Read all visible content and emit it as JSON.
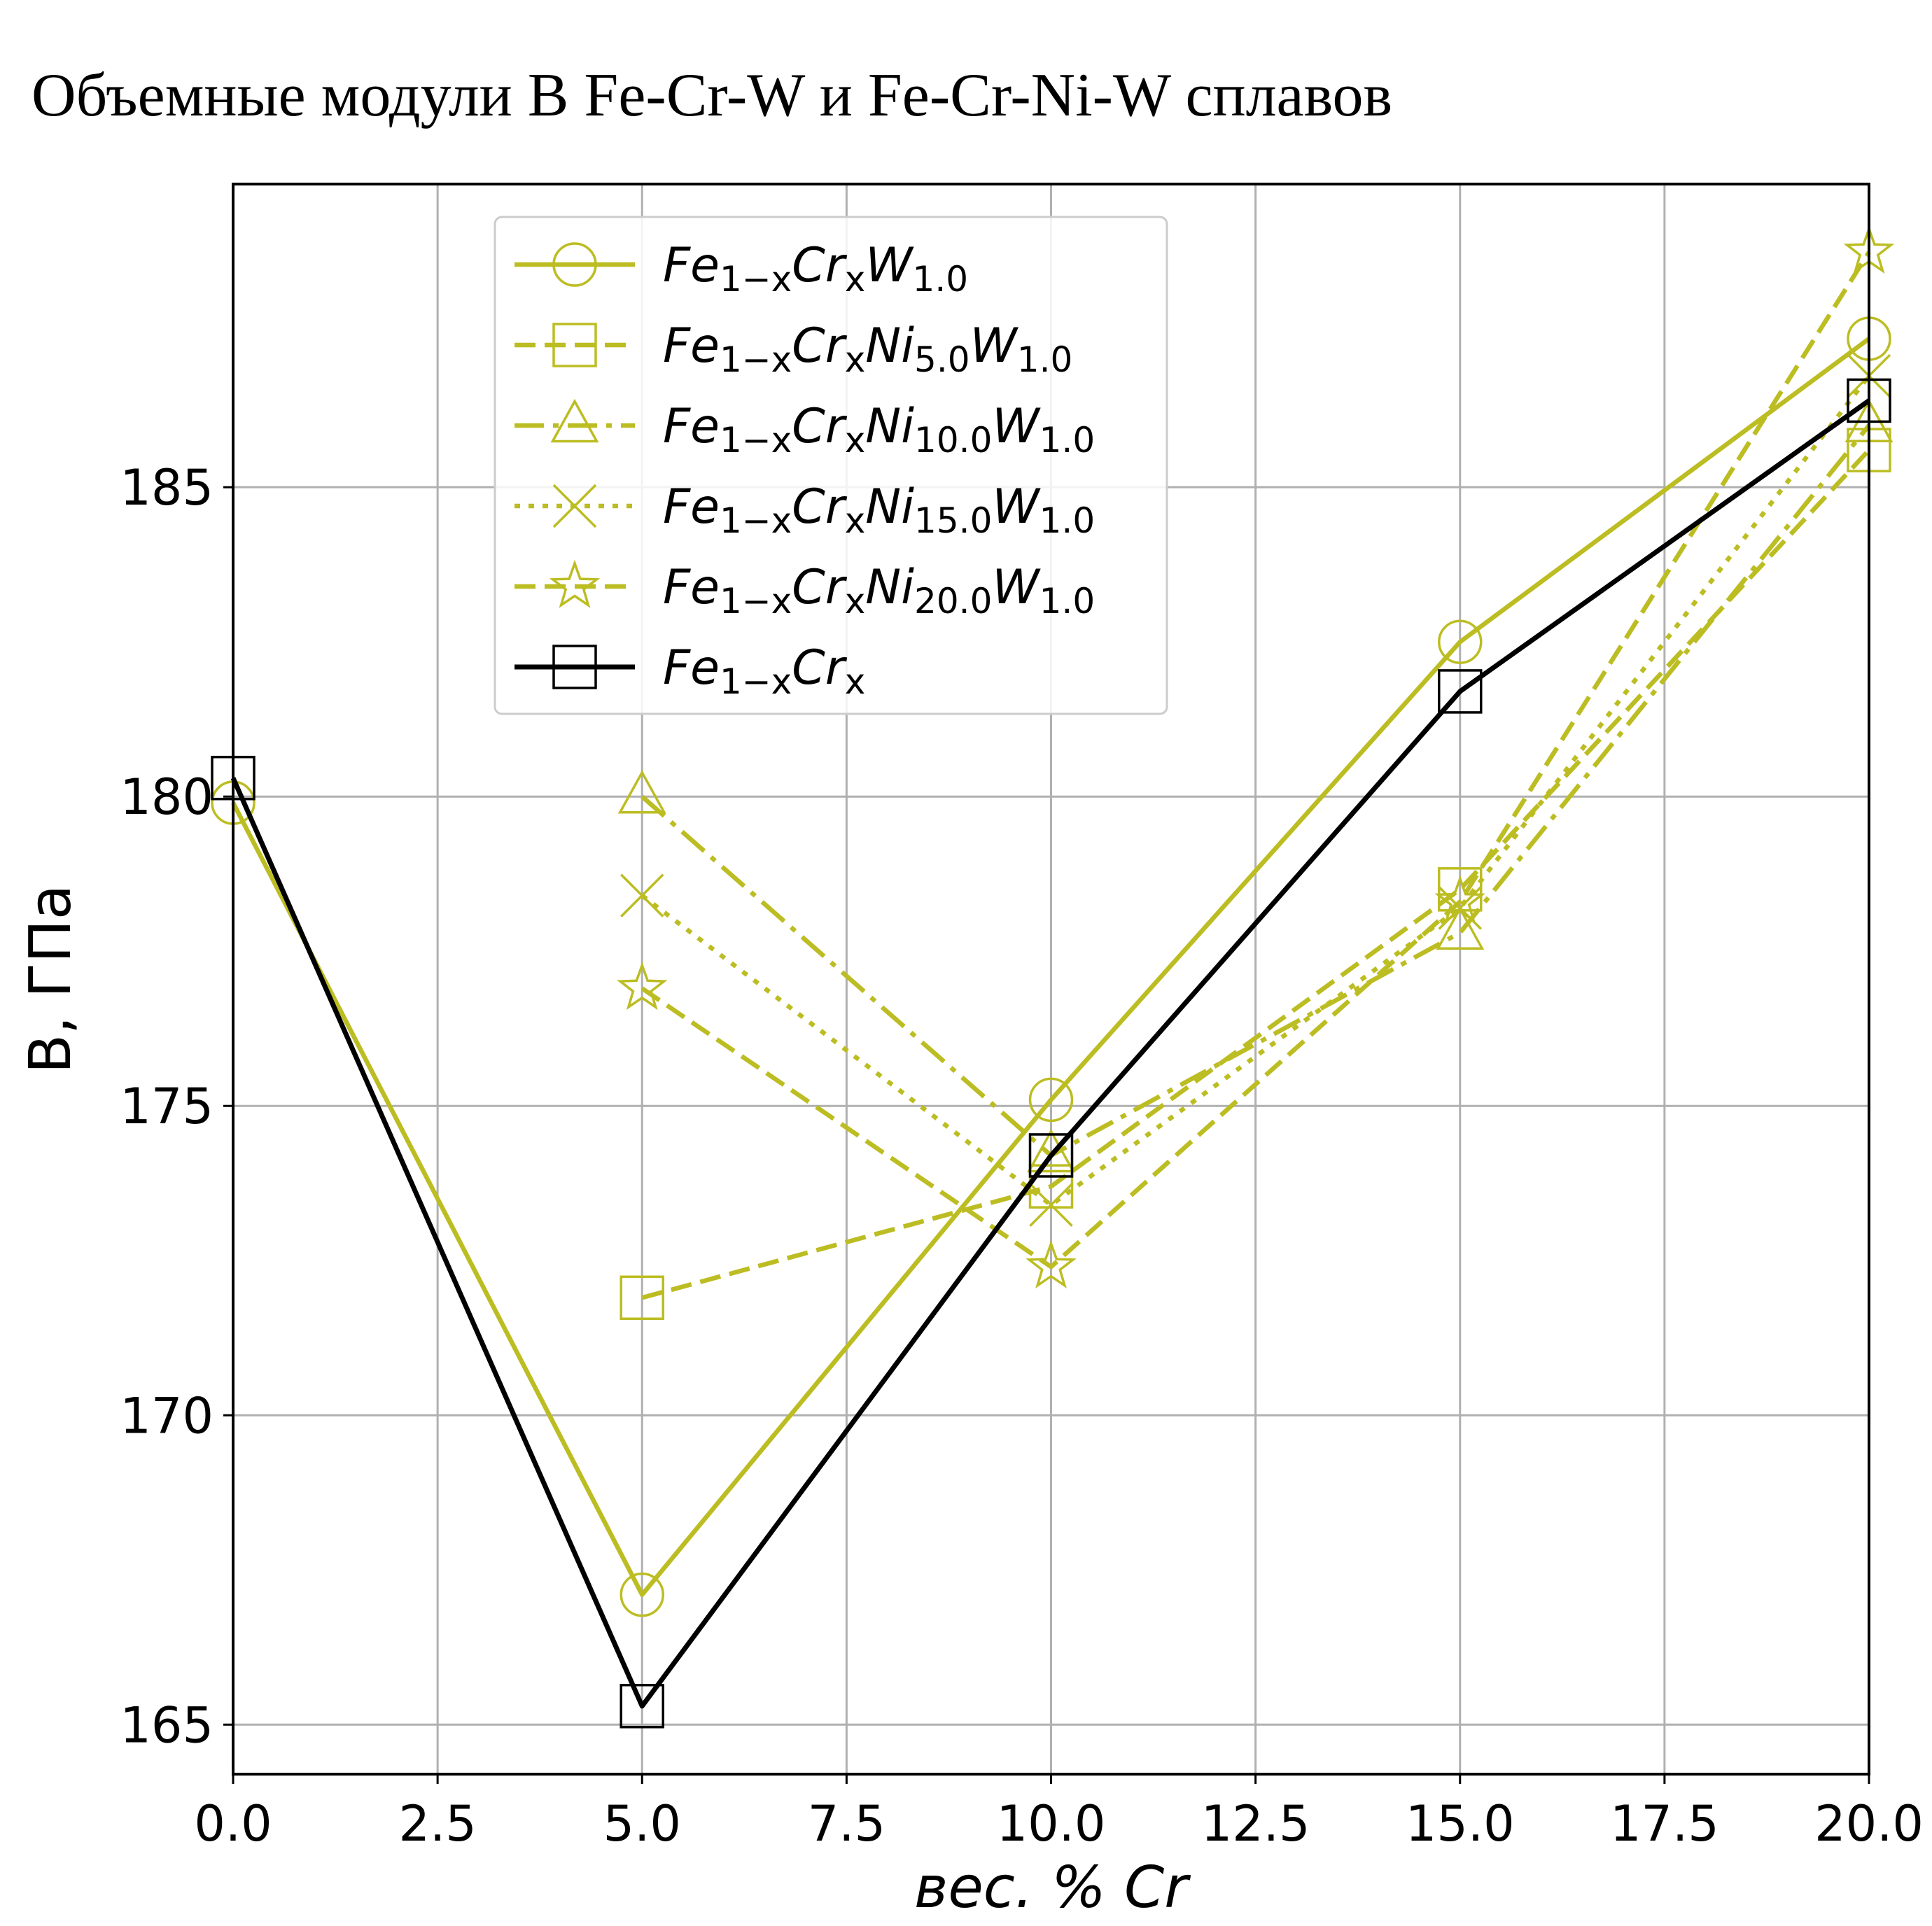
{
  "chart_data": {
    "type": "line",
    "title": "Объемные модули B Fe-Cr-W и Fe-Cr-Ni-W сплавов",
    "xlabel": "вес. % Cr",
    "ylabel": "B, ГПа",
    "xlim": [
      0,
      20
    ],
    "ylim": [
      164.2,
      189.9
    ],
    "xticks": [
      "0.0",
      "2.5",
      "5.0",
      "7.5",
      "10.0",
      "12.5",
      "15.0",
      "17.5",
      "20.0"
    ],
    "yticks": [
      "165",
      "170",
      "175",
      "180",
      "185"
    ],
    "grid": true,
    "legend_position": "top-center",
    "series": [
      {
        "name": "Fe1-xCrxW1.0",
        "legend": {
          "base": "Fe",
          "parts": [
            [
              "1−x",
              "Cr"
            ],
            [
              "x",
              "W"
            ],
            [
              "1.0",
              ""
            ]
          ]
        },
        "color": "#bcbd22",
        "linestyle": "solid",
        "marker": "circle",
        "x": [
          0,
          5,
          10,
          15,
          20
        ],
        "y": [
          179.9,
          167.1,
          175.1,
          182.5,
          187.4
        ]
      },
      {
        "name": "Fe1-xCrxNi5.0W1.0",
        "legend": {
          "base": "Fe",
          "parts": [
            [
              "1−x",
              "Cr"
            ],
            [
              "x",
              "Ni"
            ],
            [
              "5.0",
              "W"
            ],
            [
              "1.0",
              ""
            ]
          ]
        },
        "color": "#bcbd22",
        "linestyle": "dashed",
        "marker": "square",
        "x": [
          5,
          10,
          15,
          20
        ],
        "y": [
          171.9,
          173.7,
          178.5,
          185.6
        ]
      },
      {
        "name": "Fe1-xCrxNi10.0W1.0",
        "legend": {
          "base": "Fe",
          "parts": [
            [
              "1−x",
              "Cr"
            ],
            [
              "x",
              "Ni"
            ],
            [
              "10.0",
              "W"
            ],
            [
              "1.0",
              ""
            ]
          ]
        },
        "color": "#bcbd22",
        "linestyle": "dashdot",
        "marker": "triangle",
        "x": [
          5,
          10,
          15,
          20
        ],
        "y": [
          180.0,
          174.2,
          177.8,
          186.0
        ]
      },
      {
        "name": "Fe1-xCrxNi15.0W1.0",
        "legend": {
          "base": "Fe",
          "parts": [
            [
              "1−x",
              "Cr"
            ],
            [
              "x",
              "Ni"
            ],
            [
              "15.0",
              "W"
            ],
            [
              "1.0",
              ""
            ]
          ]
        },
        "color": "#bcbd22",
        "linestyle": "dotted",
        "marker": "x",
        "x": [
          5,
          10,
          15,
          20
        ],
        "y": [
          178.4,
          173.4,
          178.2,
          186.8
        ]
      },
      {
        "name": "Fe1-xCrxNi20.0W1.0",
        "legend": {
          "base": "Fe",
          "parts": [
            [
              "1−x",
              "Cr"
            ],
            [
              "x",
              "Ni"
            ],
            [
              "20.0",
              "W"
            ],
            [
              "1.0",
              ""
            ]
          ]
        },
        "color": "#bcbd22",
        "linestyle": "dashed",
        "marker": "star",
        "x": [
          5,
          10,
          15,
          20
        ],
        "y": [
          176.9,
          172.4,
          178.3,
          188.8
        ]
      },
      {
        "name": "Fe1-xCrx",
        "legend": {
          "base": "Fe",
          "parts": [
            [
              "1−x",
              "Cr"
            ],
            [
              "x",
              ""
            ]
          ]
        },
        "color": "#000000",
        "linestyle": "solid",
        "marker": "square",
        "x": [
          0,
          5,
          10,
          15,
          20
        ],
        "y": [
          180.3,
          165.3,
          174.2,
          181.7,
          186.4
        ]
      }
    ]
  }
}
